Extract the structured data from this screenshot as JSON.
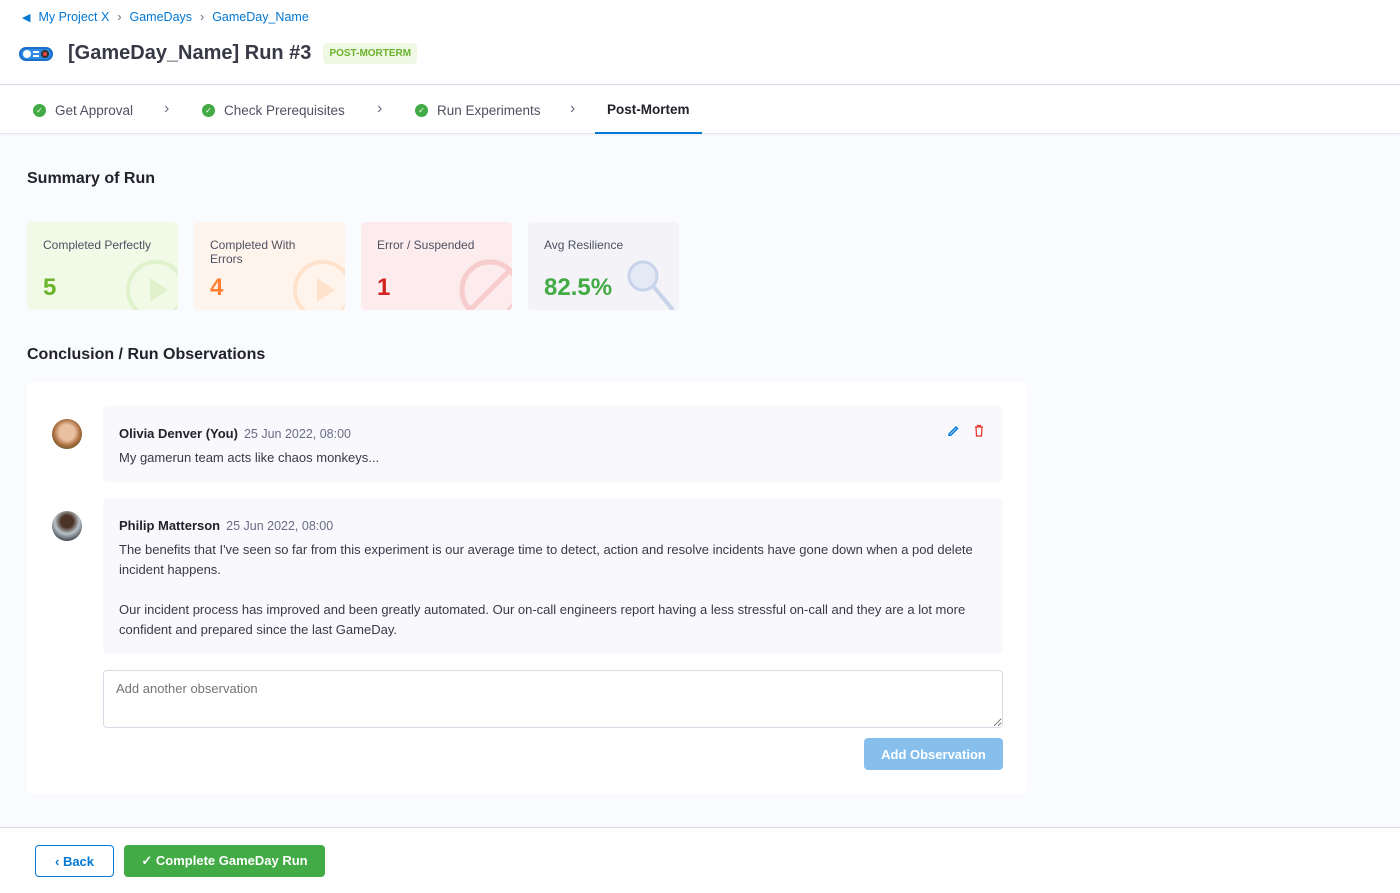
{
  "breadcrumb": [
    "My Project X",
    "GameDays",
    "GameDay_Name"
  ],
  "header": {
    "title": "[GameDay_Name] Run #3",
    "badge": "POST-MORTERM"
  },
  "steps": [
    {
      "label": "Get Approval",
      "done": true
    },
    {
      "label": "Check Prerequisites",
      "done": true
    },
    {
      "label": "Run Experiments",
      "done": true
    },
    {
      "label": "Post-Mortem",
      "active": true
    }
  ],
  "summary": {
    "title": "Summary of Run",
    "cards": [
      {
        "label": "Completed Perfectly",
        "value": "5",
        "color": "#6bb32a",
        "bg": "#f1fae7"
      },
      {
        "label": "Completed With Errors",
        "value": "4",
        "color": "#ff8033",
        "bg": "#fff4ec"
      },
      {
        "label": "Error / Suspended",
        "value": "1",
        "color": "#d22222",
        "bg": "#fdeced"
      },
      {
        "label": "Avg Resilience",
        "value": "82.5%",
        "color": "#42ab45",
        "bg": "#f3f3f8"
      }
    ]
  },
  "observations": {
    "title": "Conclusion / Run Observations",
    "items": [
      {
        "author": "Olivia Denver (You)",
        "time": "25 Jun 2022, 08:00",
        "text": [
          "My gamerun team acts like chaos monkeys..."
        ]
      },
      {
        "author": "Philip Matterson",
        "time": "25 Jun 2022, 08:00",
        "text": [
          "The benefits that I've seen so far from this experiment is our average time to detect, action and resolve incidents have gone down when a pod delete incident happens.",
          "Our incident process has improved and been greatly automated. Our on-call engineers report having a less stressful on-call and they are a lot more confident and prepared since the last GameDay."
        ]
      }
    ],
    "placeholder": "Add another observation",
    "add_label": "Add Observation"
  },
  "footer": {
    "back": "Back",
    "complete": "Complete GameDay Run"
  }
}
